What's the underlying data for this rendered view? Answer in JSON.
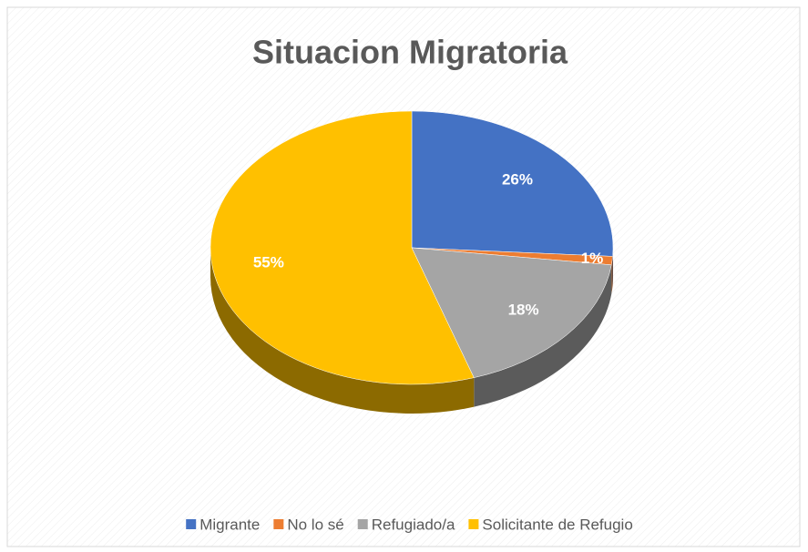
{
  "chart_data": {
    "type": "pie",
    "title": "Situacion Migratoria",
    "categories": [
      "Migrante",
      "No lo sé",
      "Refugiado/a",
      "Solicitante de Refugio"
    ],
    "values": [
      26,
      1,
      18,
      55
    ],
    "value_labels": [
      "26%",
      "1%",
      "18%",
      "55%"
    ],
    "colors": [
      "#4472c4",
      "#ed7d31",
      "#a5a5a5",
      "#ffc000"
    ],
    "legend": "bottom"
  }
}
